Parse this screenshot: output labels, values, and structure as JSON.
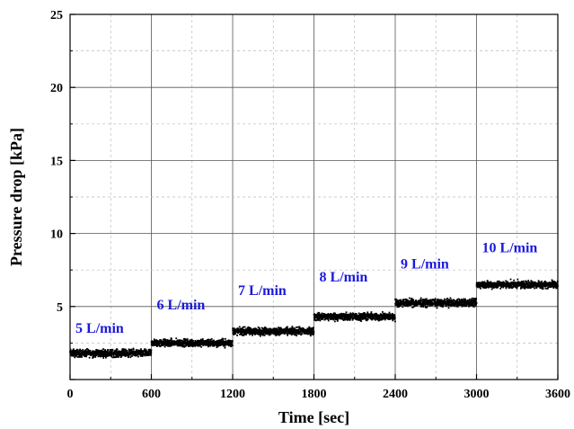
{
  "chart_data": {
    "type": "scatter",
    "title": "",
    "xlabel": "Time [sec]",
    "ylabel": "Pressure drop [kPa]",
    "xlim": [
      0,
      3600
    ],
    "ylim": [
      0,
      25
    ],
    "x_ticks": [
      "0",
      "600",
      "1200",
      "1800",
      "2400",
      "3000",
      "3600"
    ],
    "y_ticks": [
      "5",
      "10",
      "15",
      "20",
      "25"
    ],
    "grid": "dashed",
    "marker_color": "#000000",
    "annotation_color": "#1a1adc",
    "segments": [
      {
        "label": "5 L/min",
        "x_start": 0,
        "x_end": 600,
        "y_mean": 1.8,
        "label_x": 40,
        "label_y": 3.2
      },
      {
        "label": "6 L/min",
        "x_start": 600,
        "x_end": 1200,
        "y_mean": 2.5,
        "label_x": 640,
        "label_y": 4.8
      },
      {
        "label": "7 L/min",
        "x_start": 1200,
        "x_end": 1800,
        "y_mean": 3.3,
        "label_x": 1240,
        "label_y": 5.8
      },
      {
        "label": "8 L/min",
        "x_start": 1800,
        "x_end": 2400,
        "y_mean": 4.3,
        "label_x": 1840,
        "label_y": 6.7
      },
      {
        "label": "9 L/min",
        "x_start": 2400,
        "x_end": 3000,
        "y_mean": 5.25,
        "label_x": 2440,
        "label_y": 7.6
      },
      {
        "label": "10 L/min",
        "x_start": 3000,
        "x_end": 3600,
        "y_mean": 6.5,
        "label_x": 3040,
        "label_y": 8.7
      }
    ]
  }
}
